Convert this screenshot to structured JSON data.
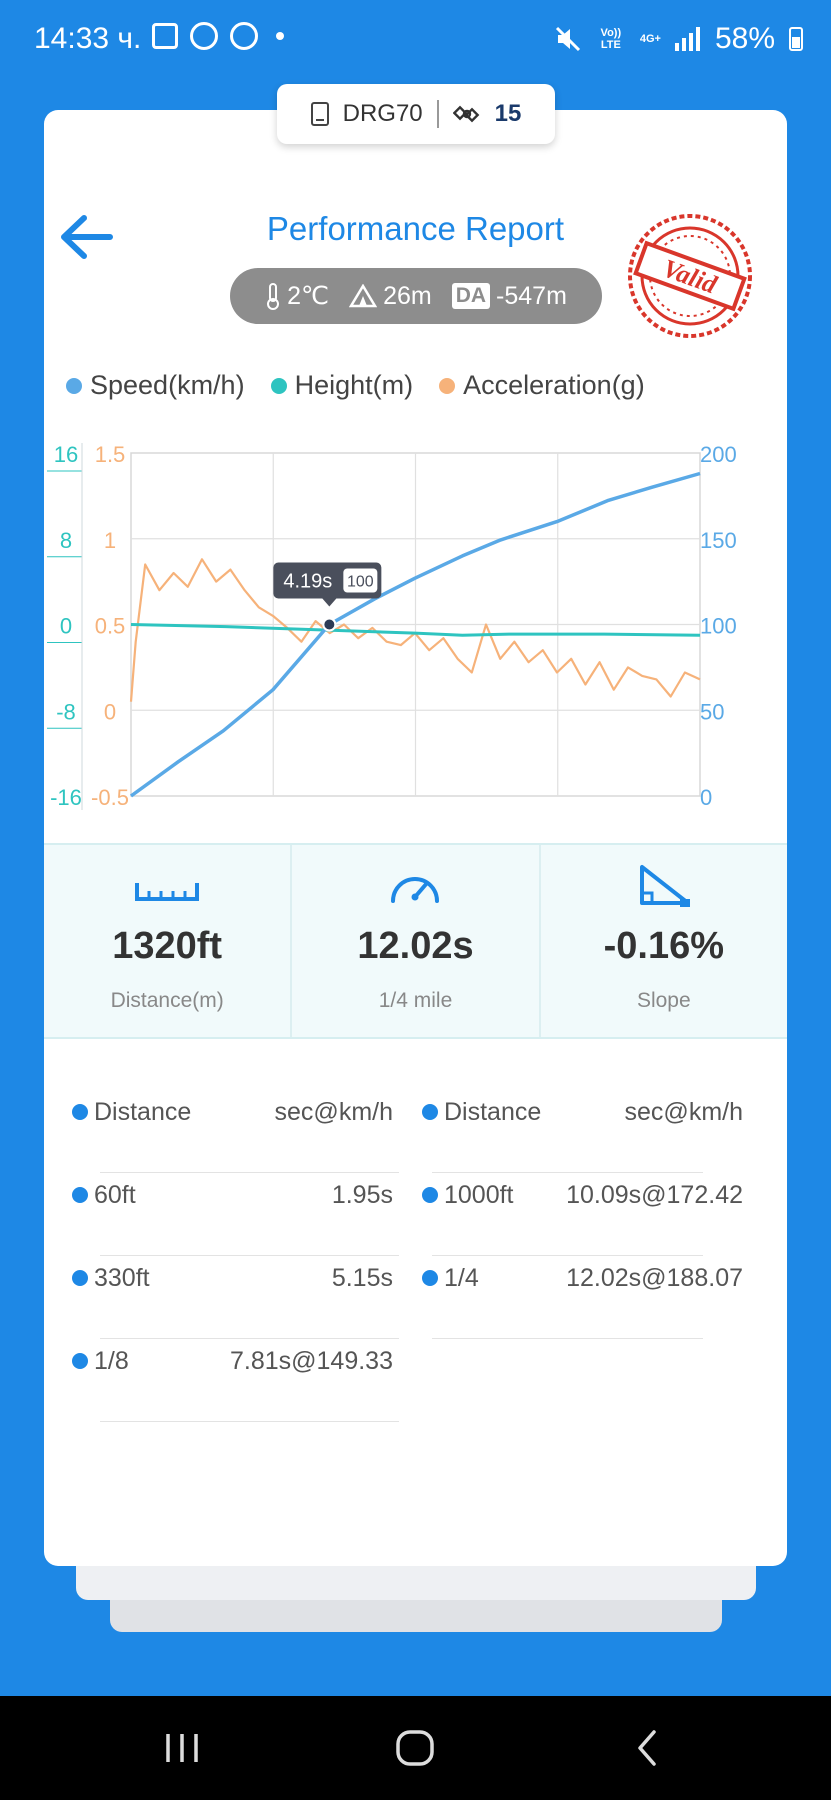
{
  "status_bar": {
    "time": "14:33 ч.",
    "network_top": "Vo)) LTE",
    "network_4g": "4G+",
    "battery": "58%"
  },
  "device": {
    "name": "DRG70",
    "satellites": "15"
  },
  "header": {
    "title": "Performance Report",
    "temperature": "2℃",
    "altitude": "26m",
    "da_label": "DA",
    "density_altitude": "-547m",
    "stamp_text": "Valid"
  },
  "legend": [
    {
      "label": "Speed(km/h)",
      "color": "#5aa9e6"
    },
    {
      "label": "Height(m)",
      "color": "#2ec4c0"
    },
    {
      "label": "Acceleration(g)",
      "color": "#f6b27a"
    }
  ],
  "chart_data": {
    "type": "line",
    "x_range": [
      0,
      12.02
    ],
    "grid": true,
    "y_axes": {
      "height": {
        "ticks": [
          "16",
          "8",
          "0",
          "-8",
          "-16"
        ],
        "color": "#2ec4c0",
        "range": [
          -16,
          16
        ]
      },
      "acceleration": {
        "ticks": [
          "1.5",
          "1",
          "0.5",
          "0",
          "-0.5"
        ],
        "color": "#f6b27a",
        "range": [
          -0.5,
          1.5
        ]
      },
      "speed": {
        "ticks": [
          "200",
          "150",
          "100",
          "50",
          "0"
        ],
        "color": "#5aa9e6",
        "range": [
          0,
          200
        ]
      }
    },
    "series": [
      {
        "name": "Speed(km/h)",
        "color": "#5aa9e6",
        "x": [
          0,
          1.0,
          1.95,
          3.0,
          4.19,
          5.15,
          6.0,
          7.0,
          7.81,
          9.0,
          10.09,
          11.0,
          12.02
        ],
        "y": [
          0,
          20,
          38,
          62,
          100,
          115,
          127,
          140,
          149.33,
          160,
          172.42,
          180,
          188.07
        ]
      },
      {
        "name": "Height(m)",
        "color": "#2ec4c0",
        "x": [
          0,
          2,
          4,
          6,
          7,
          8,
          10,
          12.02
        ],
        "y": [
          0,
          -0.2,
          -0.5,
          -0.8,
          -1.0,
          -0.9,
          -0.9,
          -1.0
        ]
      },
      {
        "name": "Acceleration(g)",
        "color": "#f6b27a",
        "x": [
          0,
          0.1,
          0.3,
          0.6,
          0.9,
          1.2,
          1.5,
          1.8,
          2.1,
          2.4,
          2.7,
          3.0,
          3.3,
          3.6,
          3.9,
          4.2,
          4.5,
          4.8,
          5.1,
          5.4,
          5.7,
          6.0,
          6.3,
          6.6,
          6.9,
          7.2,
          7.5,
          7.8,
          8.1,
          8.4,
          8.7,
          9.0,
          9.3,
          9.6,
          9.9,
          10.2,
          10.5,
          10.8,
          11.1,
          11.4,
          11.7,
          12.02
        ],
        "y": [
          0.05,
          0.4,
          0.85,
          0.7,
          0.8,
          0.72,
          0.88,
          0.75,
          0.82,
          0.7,
          0.6,
          0.55,
          0.48,
          0.4,
          0.52,
          0.45,
          0.5,
          0.42,
          0.48,
          0.4,
          0.38,
          0.45,
          0.35,
          0.42,
          0.3,
          0.22,
          0.5,
          0.3,
          0.4,
          0.28,
          0.35,
          0.22,
          0.3,
          0.15,
          0.28,
          0.12,
          0.25,
          0.2,
          0.18,
          0.08,
          0.22,
          0.18
        ]
      }
    ],
    "tooltip": {
      "time": "4.19s",
      "speed": "100"
    }
  },
  "metrics": [
    {
      "icon": "ruler-icon",
      "value": "1320ft",
      "label": "Distance(m)"
    },
    {
      "icon": "speedometer-icon",
      "value": "12.02s",
      "label": "1/4 mile"
    },
    {
      "icon": "slope-icon",
      "value": "-0.16%",
      "label": "Slope"
    }
  ],
  "table": {
    "headers": {
      "distance": "Distance",
      "value": "sec@km/h"
    },
    "left": [
      {
        "name": "60ft",
        "value": "1.95s"
      },
      {
        "name": "330ft",
        "value": "5.15s"
      },
      {
        "name": "1/8",
        "value": "7.81s@149.33"
      }
    ],
    "right": [
      {
        "name": "1000ft",
        "value": "10.09s@172.42"
      },
      {
        "name": "1/4",
        "value": "12.02s@188.07"
      }
    ]
  }
}
